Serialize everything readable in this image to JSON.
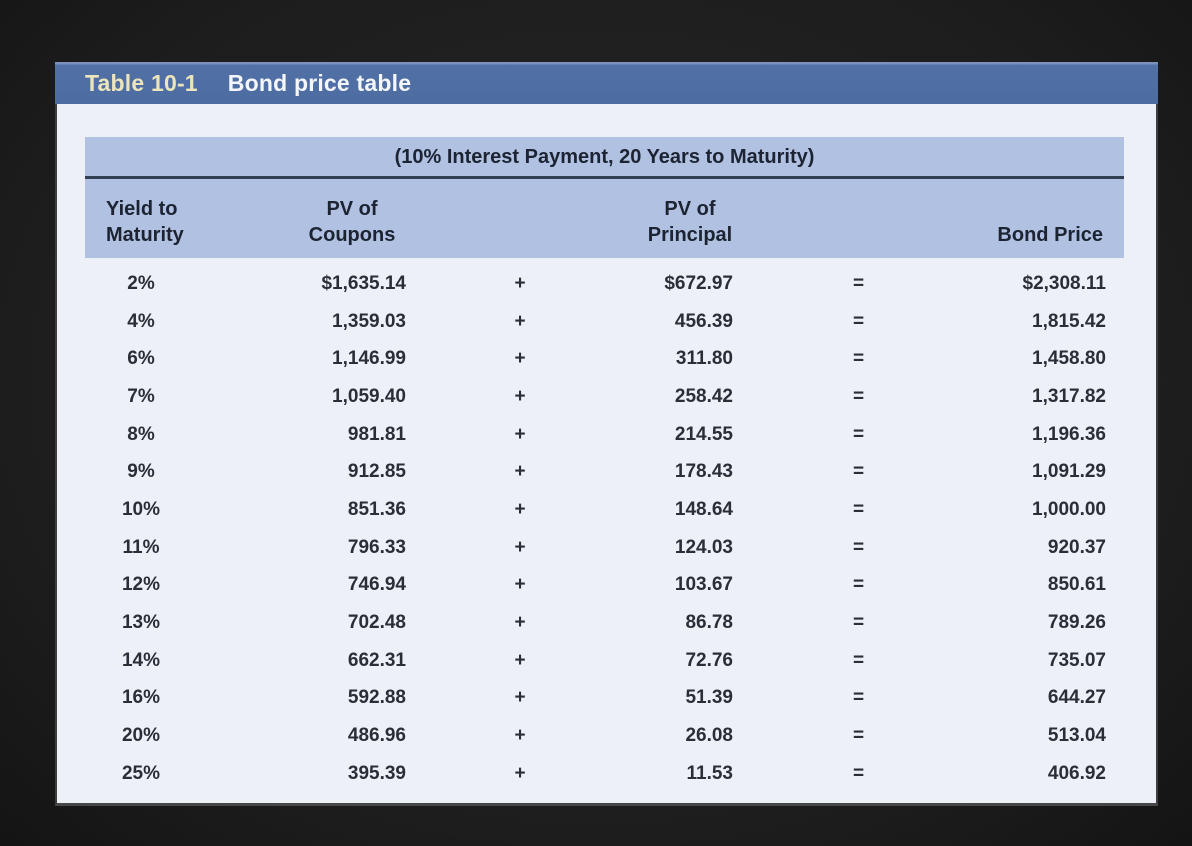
{
  "page": {
    "background_color": "#1d1d1d"
  },
  "figure": {
    "label": "Table 10-1",
    "title": "Bond price table",
    "subtitle": "(10% Interest Payment, 20 Years to Maturity)",
    "colors": {
      "title_bar_blue": "#4c6ca2",
      "title_label_cream": "#ece4ba",
      "title_text_white": "#f4f6fa",
      "body_background": "#edf0f7",
      "header_band_blue": "#b1c1e1",
      "rule_navy": "#323e52",
      "text_dark": "#1c2433",
      "frame_border": "#3e3e3e"
    }
  },
  "table": {
    "headers": {
      "yield": [
        "Yield to",
        "Maturity"
      ],
      "coupons": [
        "PV of",
        "Coupons"
      ],
      "plus": "+",
      "principal": [
        "PV of",
        "Principal"
      ],
      "equals": "=",
      "price": [
        "Bond Price"
      ]
    },
    "rows": [
      [
        "2%",
        "$1,635.14",
        "+",
        "$672.97",
        "=",
        "$2,308.11"
      ],
      [
        "4%",
        "1,359.03",
        "+",
        "456.39",
        "=",
        "1,815.42"
      ],
      [
        "6%",
        "1,146.99",
        "+",
        "311.80",
        "=",
        "1,458.80"
      ],
      [
        "7%",
        "1,059.40",
        "+",
        "258.42",
        "=",
        "1,317.82"
      ],
      [
        "8%",
        "981.81",
        "+",
        "214.55",
        "=",
        "1,196.36"
      ],
      [
        "9%",
        "912.85",
        "+",
        "178.43",
        "=",
        "1,091.29"
      ],
      [
        "10%",
        "851.36",
        "+",
        "148.64",
        "=",
        "1,000.00"
      ],
      [
        "11%",
        "796.33",
        "+",
        "124.03",
        "=",
        "920.37"
      ],
      [
        "12%",
        "746.94",
        "+",
        "103.67",
        "=",
        "850.61"
      ],
      [
        "13%",
        "702.48",
        "+",
        "86.78",
        "=",
        "789.26"
      ],
      [
        "14%",
        "662.31",
        "+",
        "72.76",
        "=",
        "735.07"
      ],
      [
        "16%",
        "592.88",
        "+",
        "51.39",
        "=",
        "644.27"
      ],
      [
        "20%",
        "486.96",
        "+",
        "26.08",
        "=",
        "513.04"
      ],
      [
        "25%",
        "395.39",
        "+",
        "11.53",
        "=",
        "406.92"
      ]
    ]
  },
  "chart_data": {
    "type": "table",
    "title": "Table 10-1 Bond price table",
    "subtitle": "(10% Interest Payment, 20 Years to Maturity)",
    "columns": [
      "Yield to Maturity (%)",
      "PV of Coupons ($)",
      "PV of Principal ($)",
      "Bond Price ($)"
    ],
    "rows": [
      [
        2,
        1635.14,
        672.97,
        2308.11
      ],
      [
        4,
        1359.03,
        456.39,
        1815.42
      ],
      [
        6,
        1146.99,
        311.8,
        1458.8
      ],
      [
        7,
        1059.4,
        258.42,
        1317.82
      ],
      [
        8,
        981.81,
        214.55,
        1196.36
      ],
      [
        9,
        912.85,
        178.43,
        1091.29
      ],
      [
        10,
        851.36,
        148.64,
        1000.0
      ],
      [
        11,
        796.33,
        124.03,
        920.37
      ],
      [
        12,
        746.94,
        103.67,
        850.61
      ],
      [
        13,
        702.48,
        86.78,
        789.26
      ],
      [
        14,
        662.31,
        72.76,
        735.07
      ],
      [
        16,
        592.88,
        51.39,
        644.27
      ],
      [
        20,
        486.96,
        26.08,
        513.04
      ],
      [
        25,
        395.39,
        11.53,
        406.92
      ]
    ]
  }
}
